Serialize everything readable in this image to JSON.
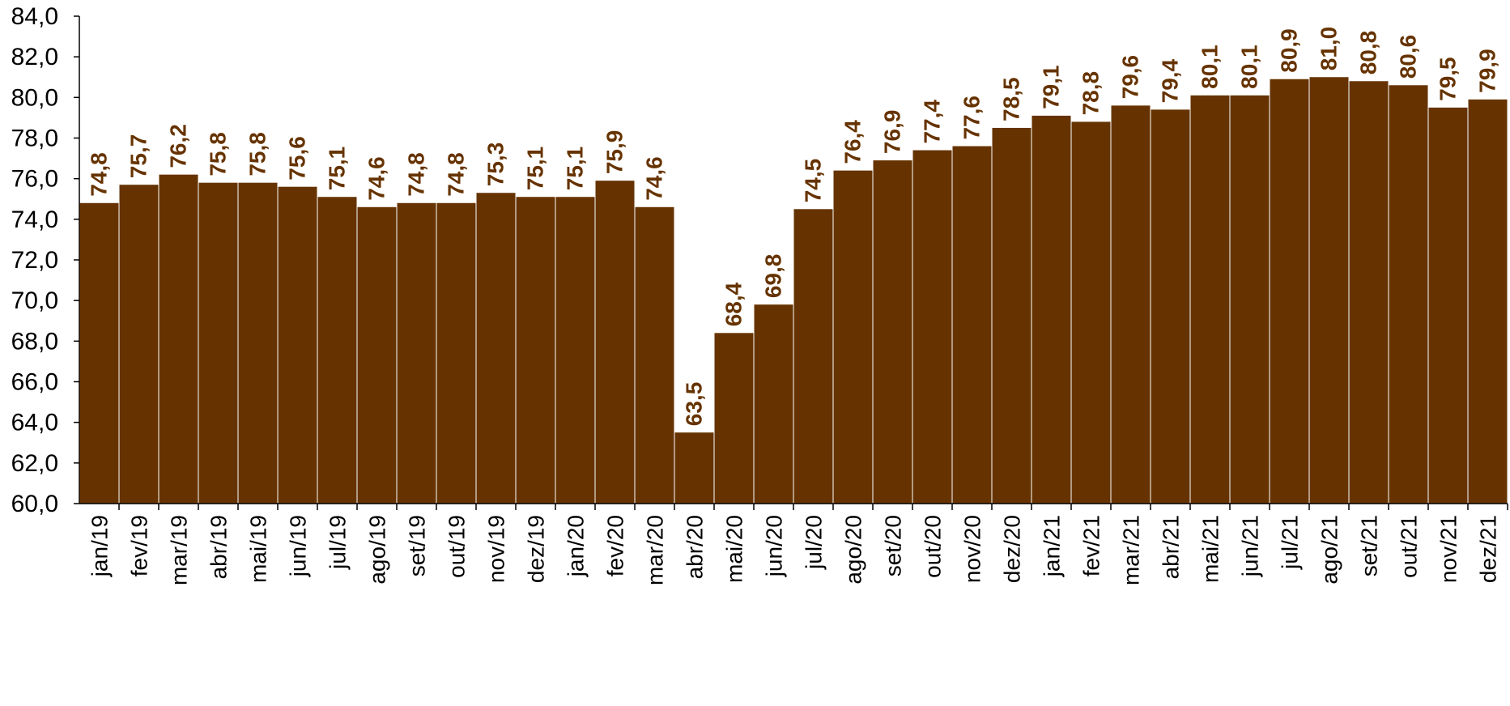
{
  "chart_data": {
    "type": "bar",
    "title": "",
    "xlabel": "",
    "ylabel": "",
    "ylim": [
      60,
      84
    ],
    "yticks": [
      "60,0",
      "62,0",
      "64,0",
      "66,0",
      "68,0",
      "70,0",
      "72,0",
      "74,0",
      "76,0",
      "78,0",
      "80,0",
      "82,0",
      "84,0"
    ],
    "grid": false,
    "legend": "none",
    "bar_color": "#663300",
    "label_color": "#663300",
    "categories": [
      "jan/19",
      "fev/19",
      "mar/19",
      "abr/19",
      "mai/19",
      "jun/19",
      "jul/19",
      "ago/19",
      "set/19",
      "out/19",
      "nov/19",
      "dez/19",
      "jan/20",
      "fev/20",
      "mar/20",
      "abr/20",
      "mai/20",
      "jun/20",
      "jul/20",
      "ago/20",
      "set/20",
      "out/20",
      "nov/20",
      "dez/20",
      "jan/21",
      "fev/21",
      "mar/21",
      "abr/21",
      "mai/21",
      "jun/21",
      "jul/21",
      "ago/21",
      "set/21",
      "out/21",
      "nov/21",
      "dez/21"
    ],
    "values": [
      74.8,
      75.7,
      76.2,
      75.8,
      75.8,
      75.6,
      75.1,
      74.6,
      74.8,
      74.8,
      75.3,
      75.1,
      75.1,
      75.9,
      74.6,
      63.5,
      68.4,
      69.8,
      74.5,
      76.4,
      76.9,
      77.4,
      77.6,
      78.5,
      79.1,
      78.8,
      79.6,
      79.4,
      80.1,
      80.1,
      80.9,
      81.0,
      80.8,
      80.6,
      79.5,
      79.9
    ],
    "data_labels": [
      "74,8",
      "75,7",
      "76,2",
      "75,8",
      "75,8",
      "75,6",
      "75,1",
      "74,6",
      "74,8",
      "74,8",
      "75,3",
      "75,1",
      "75,1",
      "75,9",
      "74,6",
      "63,5",
      "68,4",
      "69,8",
      "74,5",
      "76,4",
      "76,9",
      "77,4",
      "77,6",
      "78,5",
      "79,1",
      "78,8",
      "79,6",
      "79,4",
      "80,1",
      "80,1",
      "80,9",
      "81,0",
      "80,8",
      "80,6",
      "79,5",
      "79,9"
    ]
  }
}
